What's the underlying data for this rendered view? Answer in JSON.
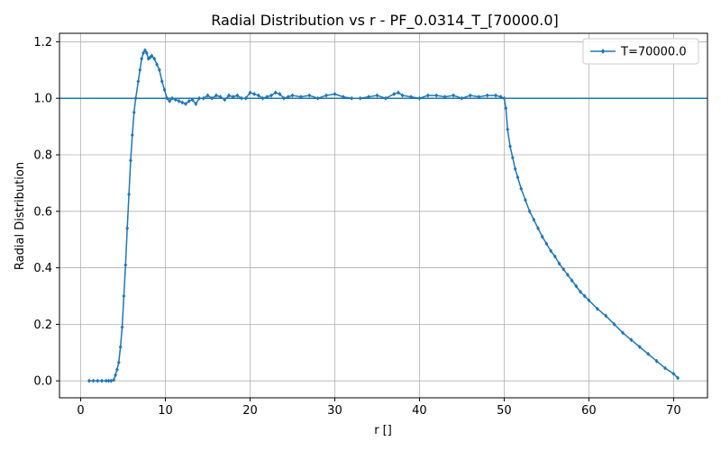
{
  "chart_data": {
    "type": "line",
    "title": "Radial Distribution vs r - PF_0.0314_T_[70000.0]",
    "xlabel": "r []",
    "ylabel": "Radial Distribution",
    "xlim": [
      -2.5,
      74.0
    ],
    "ylim": [
      -0.06,
      1.23
    ],
    "xticks": [
      0,
      10,
      20,
      30,
      40,
      50,
      60,
      70
    ],
    "yticks": [
      0.0,
      0.2,
      0.4,
      0.6,
      0.8,
      1.0,
      1.2
    ],
    "grid": true,
    "legend_position": "top-right",
    "reference_line": {
      "y": 1.0,
      "color": "#1f77b4"
    },
    "series": [
      {
        "name": "T=70000.0",
        "color": "#1f77b4",
        "marker": "diamond",
        "x": [
          1.0,
          1.5,
          2.0,
          2.5,
          3.0,
          3.3,
          3.6,
          3.9,
          4.1,
          4.3,
          4.5,
          4.7,
          4.9,
          5.1,
          5.3,
          5.5,
          5.7,
          5.9,
          6.1,
          6.3,
          6.5,
          6.8,
          7.0,
          7.2,
          7.4,
          7.6,
          7.8,
          8.0,
          8.2,
          8.4,
          8.7,
          9.0,
          9.3,
          9.6,
          9.9,
          10.2,
          10.5,
          10.8,
          11.2,
          11.6,
          12.0,
          12.4,
          12.8,
          13.2,
          13.6,
          14.0,
          14.5,
          15.0,
          15.5,
          16.0,
          16.5,
          17.0,
          17.5,
          18.0,
          18.5,
          19.0,
          19.5,
          20.0,
          20.5,
          21.0,
          21.5,
          22.0,
          22.5,
          23.0,
          23.5,
          24.0,
          24.5,
          25.0,
          26.0,
          27.0,
          28.0,
          29.0,
          30.0,
          31.0,
          32.0,
          33.0,
          34.0,
          35.0,
          36.0,
          37.0,
          37.5,
          38.0,
          39.0,
          40.0,
          41.0,
          42.0,
          43.0,
          44.0,
          45.0,
          46.0,
          47.0,
          48.0,
          49.0,
          49.6,
          50.0,
          50.2,
          50.4,
          50.7,
          51.0,
          51.3,
          51.6,
          52.0,
          52.5,
          53.0,
          53.5,
          54.0,
          54.5,
          55.0,
          55.5,
          56.0,
          56.5,
          57.0,
          57.5,
          58.0,
          58.5,
          59.0,
          59.5,
          60.0,
          61.0,
          62.0,
          63.0,
          64.0,
          65.0,
          66.0,
          67.0,
          68.0,
          69.0,
          70.0,
          70.5
        ],
        "y": [
          0.0,
          0.0,
          0.0,
          0.0,
          0.0,
          0.0,
          0.0,
          0.003,
          0.02,
          0.04,
          0.065,
          0.12,
          0.19,
          0.3,
          0.41,
          0.54,
          0.66,
          0.78,
          0.87,
          0.95,
          1.0,
          1.06,
          1.1,
          1.14,
          1.16,
          1.17,
          1.16,
          1.14,
          1.145,
          1.15,
          1.14,
          1.12,
          1.1,
          1.06,
          1.03,
          1.0,
          0.99,
          1.0,
          0.995,
          0.99,
          0.985,
          0.98,
          0.99,
          0.995,
          0.98,
          1.0,
          1.0,
          1.01,
          1.0,
          1.01,
          1.005,
          0.995,
          1.01,
          1.005,
          1.01,
          1.0,
          1.0,
          1.02,
          1.015,
          1.01,
          1.0,
          1.005,
          1.01,
          1.02,
          1.015,
          1.0,
          1.005,
          1.01,
          1.005,
          1.01,
          1.0,
          1.01,
          1.015,
          1.005,
          1.0,
          1.0,
          1.005,
          1.01,
          1.0,
          1.015,
          1.02,
          1.01,
          1.005,
          1.0,
          1.01,
          1.01,
          1.005,
          1.01,
          1.0,
          1.01,
          1.005,
          1.01,
          1.01,
          1.005,
          1.0,
          0.965,
          0.89,
          0.83,
          0.79,
          0.75,
          0.72,
          0.68,
          0.64,
          0.6,
          0.57,
          0.54,
          0.51,
          0.485,
          0.46,
          0.44,
          0.415,
          0.395,
          0.375,
          0.355,
          0.335,
          0.315,
          0.3,
          0.285,
          0.255,
          0.23,
          0.2,
          0.17,
          0.145,
          0.12,
          0.095,
          0.07,
          0.045,
          0.025,
          0.01
        ]
      }
    ]
  }
}
